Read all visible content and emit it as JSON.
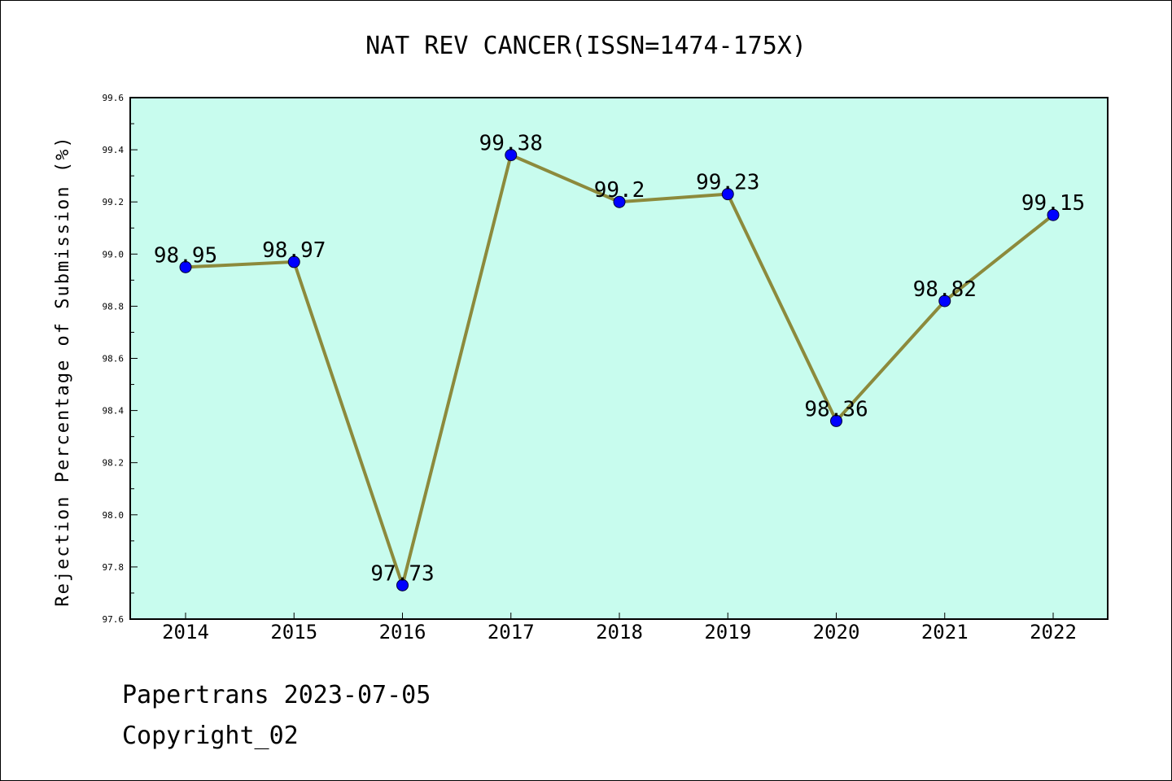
{
  "chart_data": {
    "type": "line",
    "title": "NAT REV CANCER(ISSN=1474-175X)",
    "xlabel": "",
    "ylabel": "Rejection Percentage of Submission (%)",
    "x": [
      "2014",
      "2015",
      "2016",
      "2017",
      "2018",
      "2019",
      "2020",
      "2021",
      "2022"
    ],
    "series": [
      {
        "values": [
          98.95,
          98.97,
          97.73,
          99.38,
          99.2,
          99.23,
          98.36,
          98.82,
          99.15
        ],
        "labels": [
          "98.95",
          "98.97",
          "97.73",
          "99.38",
          "99.2",
          "99.23",
          "98.36",
          "98.82",
          "99.15"
        ]
      }
    ],
    "ylim": [
      97.6,
      99.6
    ],
    "yticks": [
      "97.6",
      "97.8",
      "98.0",
      "98.2",
      "98.4",
      "98.6",
      "98.8",
      "99.0",
      "99.2",
      "99.4",
      "99.6"
    ],
    "grid": false,
    "legend": "none",
    "colors": {
      "plot_background": "#c8fcee",
      "line": "#8c8a3c",
      "marker": "#0000ff"
    }
  },
  "footer": {
    "line1": "Papertrans 2023-07-05",
    "line2": "Copyright_02"
  }
}
